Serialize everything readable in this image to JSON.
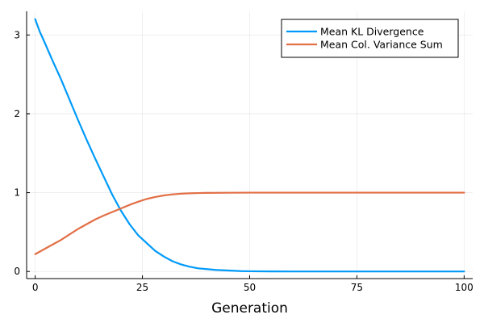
{
  "chart_data": {
    "type": "line",
    "title": "",
    "xlabel": "Generation",
    "ylabel": "",
    "xlim": [
      -2,
      102
    ],
    "ylim": [
      -0.09,
      3.3
    ],
    "xticks": [
      0,
      25,
      50,
      75,
      100
    ],
    "yticks": [
      0,
      1,
      2,
      3
    ],
    "grid": true,
    "legend_position": "top-right",
    "series": [
      {
        "name": "Mean KL Divergence",
        "color": "#009af9",
        "x": [
          0,
          1,
          2,
          4,
          6,
          8,
          10,
          12,
          14,
          16,
          18,
          20,
          22,
          24,
          26,
          28,
          30,
          32,
          34,
          36,
          38,
          40,
          42,
          44,
          46,
          48,
          50,
          55,
          60,
          70,
          80,
          90,
          100
        ],
        "y": [
          3.2,
          3.05,
          2.93,
          2.68,
          2.44,
          2.18,
          1.92,
          1.67,
          1.43,
          1.2,
          0.97,
          0.77,
          0.6,
          0.46,
          0.36,
          0.26,
          0.19,
          0.13,
          0.09,
          0.06,
          0.04,
          0.03,
          0.02,
          0.015,
          0.01,
          0.005,
          0.003,
          0.001,
          0.0,
          0.0,
          0.0,
          0.0,
          0.0
        ]
      },
      {
        "name": "Mean Col. Variance Sum",
        "color": "#e26f46",
        "x": [
          0,
          2,
          4,
          6,
          8,
          10,
          12,
          14,
          16,
          18,
          20,
          22,
          24,
          26,
          28,
          30,
          32,
          34,
          36,
          38,
          40,
          45,
          50,
          60,
          70,
          80,
          90,
          100
        ],
        "y": [
          0.22,
          0.28,
          0.34,
          0.4,
          0.47,
          0.54,
          0.6,
          0.66,
          0.71,
          0.755,
          0.8,
          0.845,
          0.885,
          0.92,
          0.945,
          0.965,
          0.978,
          0.987,
          0.992,
          0.995,
          0.997,
          0.999,
          1.0,
          1.0,
          1.0,
          1.0,
          1.0,
          1.0
        ]
      }
    ]
  }
}
